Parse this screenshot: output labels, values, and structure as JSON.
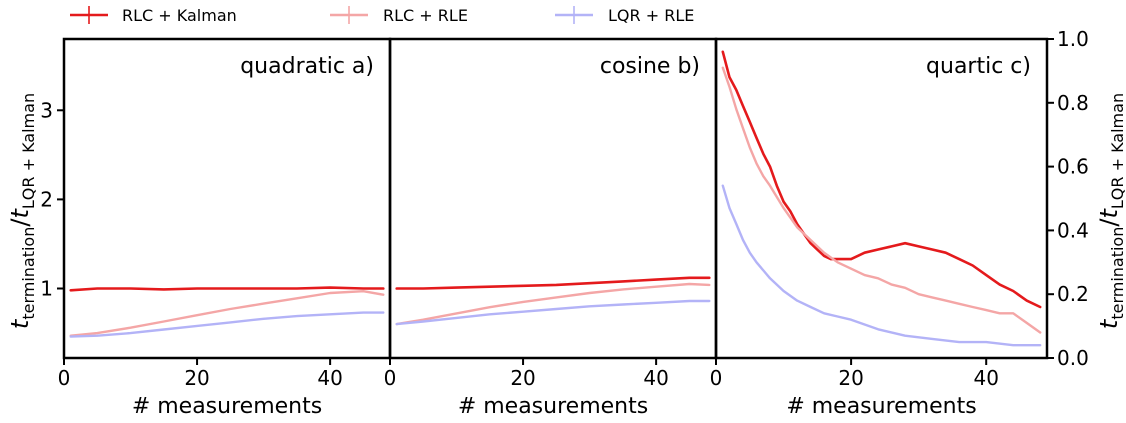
{
  "legend": {
    "placement": "top",
    "items": [
      {
        "label": "RLC + Kalman",
        "color": "#e41a1c"
      },
      {
        "label": "RLC + RLE",
        "color": "#f4a6a6"
      },
      {
        "label": "LQR + RLE",
        "color": "#b3b3f7"
      }
    ]
  },
  "ylabel": {
    "main": "t",
    "sub_main": "termination",
    "slash": "/",
    "den": "t",
    "sub_den": "LQR + Kalman"
  },
  "chart_data": [
    {
      "type": "line",
      "title": "quadratic  a)",
      "xlabel": "# measurements",
      "xlim": [
        0,
        49
      ],
      "ylim": [
        0.22,
        3.8
      ],
      "xticks": [
        "0",
        "20",
        "40"
      ],
      "xtick_values": [
        0,
        20,
        40
      ],
      "yticks": [
        "1",
        "2",
        "3"
      ],
      "ytick_values": [
        1,
        2,
        3
      ],
      "yaxis_side": "left",
      "grid": false,
      "series": [
        {
          "name": "RLC + Kalman",
          "color": "#e41a1c",
          "width": 2.6,
          "x": [
            1,
            5,
            10,
            15,
            20,
            25,
            30,
            35,
            40,
            45,
            48
          ],
          "y": [
            0.98,
            1.0,
            1.0,
            0.99,
            1.0,
            1.0,
            1.0,
            1.0,
            1.01,
            1.0,
            1.0
          ]
        },
        {
          "name": "RLC + RLE",
          "color": "#f4a6a6",
          "width": 2.4,
          "x": [
            1,
            5,
            10,
            15,
            20,
            25,
            30,
            35,
            40,
            45,
            48
          ],
          "y": [
            0.47,
            0.5,
            0.56,
            0.63,
            0.7,
            0.77,
            0.83,
            0.89,
            0.95,
            0.97,
            0.93
          ]
        },
        {
          "name": "LQR + RLE",
          "color": "#b3b3f7",
          "width": 2.4,
          "x": [
            1,
            5,
            10,
            15,
            20,
            25,
            30,
            35,
            40,
            45,
            48
          ],
          "y": [
            0.46,
            0.47,
            0.5,
            0.54,
            0.58,
            0.62,
            0.66,
            0.69,
            0.71,
            0.73,
            0.73
          ]
        }
      ]
    },
    {
      "type": "line",
      "title": "cosine  b)",
      "xlabel": "# measurements",
      "xlim": [
        0,
        49
      ],
      "ylim": [
        0.22,
        3.8
      ],
      "xticks": [
        "0",
        "20",
        "40"
      ],
      "xtick_values": [
        0,
        20,
        40
      ],
      "yticks": [],
      "ytick_values": [],
      "yaxis_side": "none",
      "grid": false,
      "series": [
        {
          "name": "RLC + Kalman",
          "color": "#e41a1c",
          "width": 2.6,
          "x": [
            1,
            5,
            10,
            15,
            20,
            25,
            30,
            35,
            40,
            45,
            48
          ],
          "y": [
            1.0,
            1.0,
            1.01,
            1.02,
            1.03,
            1.04,
            1.06,
            1.08,
            1.1,
            1.12,
            1.12
          ]
        },
        {
          "name": "RLC + RLE",
          "color": "#f4a6a6",
          "width": 2.4,
          "x": [
            1,
            5,
            10,
            15,
            20,
            25,
            30,
            35,
            40,
            45,
            48
          ],
          "y": [
            0.6,
            0.65,
            0.72,
            0.79,
            0.85,
            0.9,
            0.95,
            0.99,
            1.02,
            1.05,
            1.04
          ]
        },
        {
          "name": "LQR + RLE",
          "color": "#b3b3f7",
          "width": 2.4,
          "x": [
            1,
            5,
            10,
            15,
            20,
            25,
            30,
            35,
            40,
            45,
            48
          ],
          "y": [
            0.6,
            0.63,
            0.67,
            0.71,
            0.74,
            0.77,
            0.8,
            0.82,
            0.84,
            0.86,
            0.86
          ]
        }
      ]
    },
    {
      "type": "line",
      "title": "quartic  c)",
      "xlabel": "# measurements",
      "xlim": [
        0,
        49
      ],
      "ylim": [
        0.0,
        1.0
      ],
      "xticks": [
        "0",
        "20",
        "40"
      ],
      "xtick_values": [
        0,
        20,
        40
      ],
      "yticks": [
        "0.0",
        "0.2",
        "0.4",
        "0.6",
        "0.8",
        "1.0"
      ],
      "ytick_values": [
        0.0,
        0.2,
        0.4,
        0.6,
        0.8,
        1.0
      ],
      "yaxis_side": "right",
      "grid": false,
      "series": [
        {
          "name": "RLC + Kalman",
          "color": "#e41a1c",
          "width": 2.6,
          "x": [
            1,
            2,
            3,
            4,
            5,
            6,
            7,
            8,
            9,
            10,
            11,
            12,
            13,
            14,
            15,
            16,
            17,
            18,
            19,
            20,
            22,
            24,
            26,
            28,
            30,
            32,
            34,
            36,
            38,
            40,
            42,
            44,
            46,
            48
          ],
          "y": [
            0.96,
            0.88,
            0.84,
            0.79,
            0.74,
            0.69,
            0.64,
            0.6,
            0.54,
            0.49,
            0.46,
            0.42,
            0.39,
            0.36,
            0.34,
            0.32,
            0.31,
            0.31,
            0.31,
            0.31,
            0.33,
            0.34,
            0.35,
            0.36,
            0.35,
            0.34,
            0.33,
            0.31,
            0.29,
            0.26,
            0.23,
            0.21,
            0.18,
            0.16
          ]
        },
        {
          "name": "RLC + RLE",
          "color": "#f4a6a6",
          "width": 2.4,
          "x": [
            1,
            2,
            3,
            4,
            5,
            6,
            7,
            8,
            10,
            12,
            14,
            16,
            18,
            20,
            22,
            24,
            26,
            28,
            30,
            32,
            34,
            36,
            38,
            40,
            42,
            44,
            46,
            48
          ],
          "y": [
            0.91,
            0.85,
            0.78,
            0.72,
            0.66,
            0.61,
            0.57,
            0.54,
            0.47,
            0.41,
            0.37,
            0.33,
            0.3,
            0.28,
            0.26,
            0.25,
            0.23,
            0.22,
            0.2,
            0.19,
            0.18,
            0.17,
            0.16,
            0.15,
            0.14,
            0.14,
            0.11,
            0.08
          ]
        },
        {
          "name": "LQR + RLE",
          "color": "#b3b3f7",
          "width": 2.4,
          "x": [
            1,
            2,
            3,
            4,
            5,
            6,
            8,
            10,
            12,
            14,
            16,
            18,
            20,
            24,
            28,
            32,
            36,
            40,
            44,
            48
          ],
          "y": [
            0.54,
            0.47,
            0.42,
            0.37,
            0.33,
            0.3,
            0.25,
            0.21,
            0.18,
            0.16,
            0.14,
            0.13,
            0.12,
            0.09,
            0.07,
            0.06,
            0.05,
            0.05,
            0.04,
            0.04
          ]
        }
      ]
    }
  ]
}
